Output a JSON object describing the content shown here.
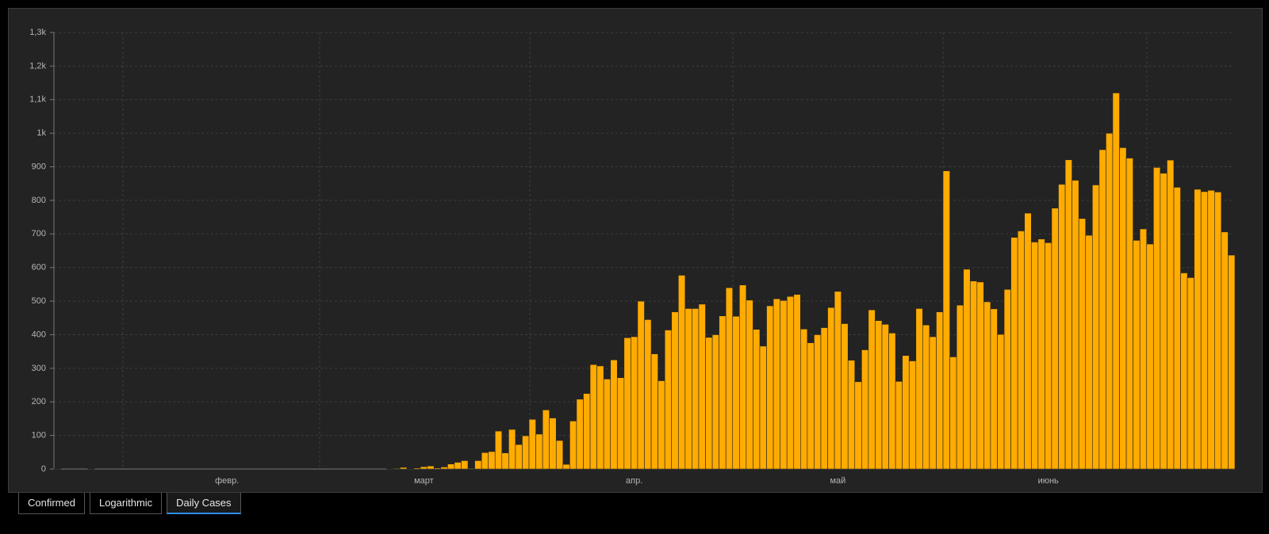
{
  "chart_data": {
    "type": "bar",
    "color": "#ffab00",
    "grid": true,
    "categories": [
      null,
      null,
      null,
      null,
      null,
      null,
      null,
      null,
      null,
      null,
      null,
      null,
      null,
      null,
      null,
      null,
      null,
      null,
      null,
      null,
      null,
      null,
      null,
      null,
      null,
      "февр.",
      null,
      null,
      null,
      null,
      null,
      null,
      null,
      null,
      null,
      null,
      null,
      null,
      null,
      null,
      null,
      null,
      null,
      null,
      null,
      null,
      null,
      null,
      null,
      null,
      null,
      null,
      null,
      null,
      "март",
      null,
      null,
      null,
      null,
      null,
      null,
      null,
      null,
      null,
      null,
      null,
      null,
      null,
      null,
      null,
      null,
      null,
      null,
      null,
      null,
      null,
      null,
      null,
      null,
      null,
      null,
      null,
      null,
      null,
      null,
      "апр.",
      null,
      null,
      null,
      null,
      null,
      null,
      null,
      null,
      null,
      null,
      null,
      null,
      null,
      null,
      null,
      null,
      null,
      null,
      null,
      null,
      null,
      null,
      null,
      null,
      null,
      null,
      null,
      null,
      null,
      "май",
      null,
      null,
      null,
      null,
      null,
      null,
      null,
      null,
      null,
      null,
      null,
      null,
      null,
      null,
      null,
      null,
      null,
      null,
      null,
      null,
      null,
      null,
      null,
      null,
      null,
      null,
      null,
      null,
      null,
      null,
      "июнь",
      null,
      null,
      null,
      null,
      null,
      null,
      null,
      null,
      null,
      null,
      null,
      null,
      null,
      null,
      null,
      null,
      null,
      null,
      null,
      null,
      null,
      null,
      null,
      null,
      null,
      null,
      null
    ],
    "values": [
      1,
      0,
      0,
      0,
      0,
      1,
      0,
      0,
      0,
      0,
      0,
      0,
      0,
      0,
      0,
      0,
      0,
      0,
      0,
      0,
      0,
      0,
      0,
      0,
      0,
      0,
      0,
      0,
      0,
      0,
      0,
      0,
      0,
      0,
      0,
      0,
      0,
      0,
      0,
      0,
      0,
      0,
      0,
      0,
      0,
      0,
      0,
      0,
      0,
      1,
      2,
      5,
      1,
      3,
      7,
      9,
      3,
      6,
      15,
      20,
      25,
      2,
      25,
      49,
      52,
      113,
      48,
      118,
      73,
      99,
      148,
      104,
      176,
      152,
      85,
      14,
      143,
      208,
      225,
      311,
      307,
      268,
      325,
      272,
      391,
      394,
      500,
      445,
      343,
      263,
      414,
      468,
      577,
      478,
      478,
      491,
      392,
      400,
      456,
      540,
      455,
      548,
      503,
      416,
      366,
      486,
      507,
      502,
      514,
      520,
      417,
      376,
      400,
      421,
      481,
      529,
      433,
      324,
      260,
      355,
      474,
      442,
      431,
      405,
      261,
      338,
      322,
      478,
      429,
      394,
      468,
      888,
      334,
      488,
      595,
      560,
      557,
      498,
      477,
      401,
      535,
      690,
      709,
      762,
      676,
      685,
      674,
      777,
      848,
      921,
      860,
      746,
      696,
      846,
      951,
      1000,
      1120,
      957,
      926,
      681,
      715,
      670,
      898,
      881,
      920,
      839,
      584,
      570,
      833,
      826,
      830,
      825,
      706,
      637
    ],
    "ylim": [
      0,
      1300
    ],
    "yticks": [
      0,
      100,
      200,
      300,
      400,
      500,
      600,
      700,
      800,
      900,
      {
        "value": 1000,
        "label": "1k"
      },
      {
        "value": 1100,
        "label": "1,1k"
      },
      {
        "value": 1200,
        "label": "1,2k"
      },
      {
        "value": 1300,
        "label": "1,3k"
      }
    ]
  },
  "tabs": [
    "Confirmed",
    "Logarithmic",
    "Daily Cases"
  ],
  "active_tab": 2
}
